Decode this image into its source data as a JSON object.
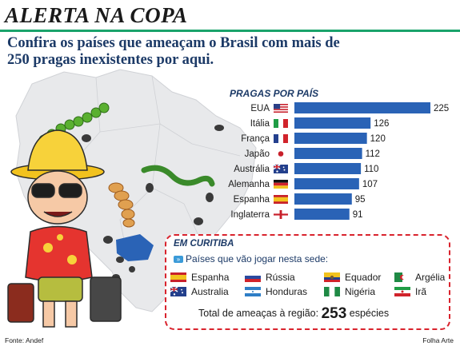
{
  "header": {
    "title": "ALERTA NA COPA",
    "subtitle": "Confira os países que ameaçam o Brasil com mais de 250 pragas inexistentes por aqui."
  },
  "chart_data": {
    "type": "bar",
    "orientation": "horizontal",
    "title": "PRAGAS POR PAÍS",
    "categories": [
      "EUA",
      "Itália",
      "França",
      "Japão",
      "Austrália",
      "Alemanha",
      "Espanha",
      "Inglaterra"
    ],
    "values": [
      225,
      126,
      120,
      112,
      110,
      107,
      95,
      91
    ],
    "category_flags": [
      "us",
      "it",
      "fr",
      "jp",
      "au",
      "de",
      "es",
      "en"
    ],
    "bar_color": "#2a63b6",
    "xlabel": "",
    "ylabel": "",
    "grid": false,
    "data_labels": true
  },
  "callout": {
    "title": "EM CURITIBA",
    "intro": "Países que vão jogar nesta sede:",
    "countries": [
      {
        "name": "Espanha",
        "flag": "es"
      },
      {
        "name": "Rússia",
        "flag": "ru"
      },
      {
        "name": "Equador",
        "flag": "ec"
      },
      {
        "name": "Argélia",
        "flag": "dz"
      },
      {
        "name": "Australia",
        "flag": "au"
      },
      {
        "name": "Honduras",
        "flag": "hn"
      },
      {
        "name": "Nigéria",
        "flag": "ng"
      },
      {
        "name": "Irã",
        "flag": "ir"
      }
    ],
    "total_prefix": "Total de ameaças à região:",
    "total_value": "253",
    "total_suffix": "espécies"
  },
  "footer": {
    "source": "Fonte: Andef",
    "credit": "Folha Arte"
  },
  "colors": {
    "accent_rule": "#1aa36b",
    "navy_text": "#1c3a67",
    "callout_border": "#d9232d",
    "map_fill": "#e8e9eb",
    "map_highlight": "#2a63b6"
  }
}
